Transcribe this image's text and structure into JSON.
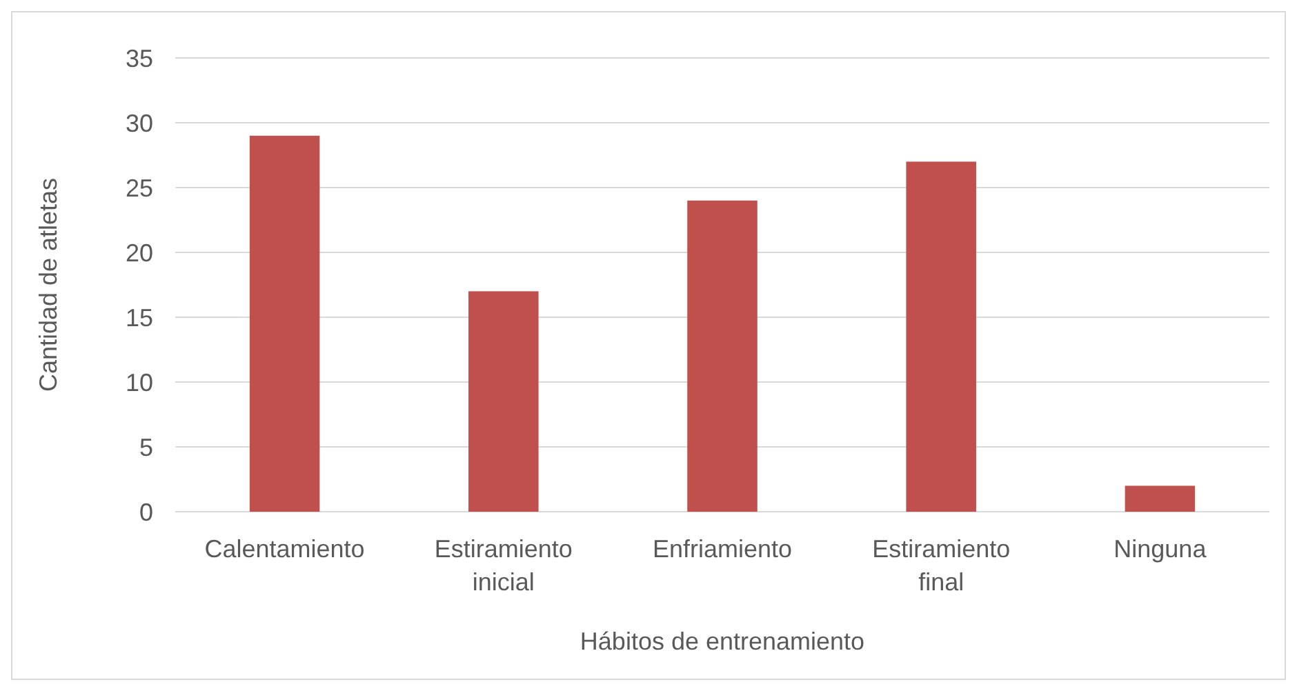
{
  "chart_data": {
    "type": "bar",
    "xlabel": "Hábitos de entrenamiento",
    "ylabel": "Cantidad de atletas",
    "categories": [
      "Calentamiento",
      "Estiramiento inicial",
      "Enfriamiento",
      "Estiramiento final",
      "Ninguna"
    ],
    "values": [
      29,
      17,
      24,
      27,
      2
    ],
    "color": "#c0504d",
    "ylim": [
      0,
      35
    ],
    "yticks": [
      0,
      5,
      10,
      15,
      20,
      25,
      30,
      35
    ],
    "grid": true
  }
}
